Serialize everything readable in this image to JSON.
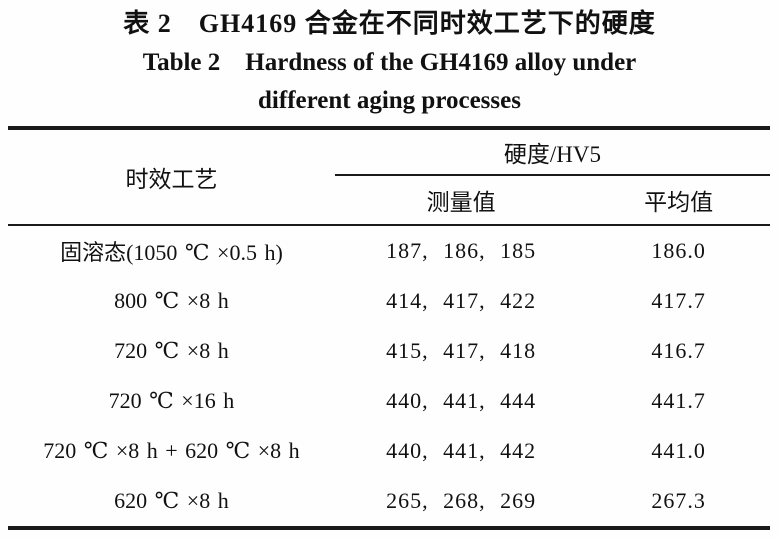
{
  "title": {
    "line1_zh": "表 2　GH4169 合金在不同时效工艺下的硬度",
    "line2_en": "Table 2 Hardness of the GH4169 alloy under",
    "line3_en": "different aging processes"
  },
  "table": {
    "col1_header": "时效工艺",
    "group_header": "硬度/HV5",
    "sub_headers": [
      "测量值",
      "平均值"
    ],
    "rows": [
      {
        "process": "固溶态(1050 ℃ ×0.5 h)",
        "measured": "187, 186, 185",
        "average": "186.0"
      },
      {
        "process": "800 ℃ ×8 h",
        "measured": "414, 417, 422",
        "average": "417.7"
      },
      {
        "process": "720 ℃ ×8 h",
        "measured": "415, 417, 418",
        "average": "416.7"
      },
      {
        "process": "720 ℃ ×16 h",
        "measured": "440, 441, 444",
        "average": "441.7"
      },
      {
        "process": "720 ℃ ×8 h + 620 ℃ ×8 h",
        "measured": "440, 441, 442",
        "average": "441.0"
      },
      {
        "process": "620 ℃ ×8 h",
        "measured": "265, 268, 269",
        "average": "267.3"
      }
    ]
  }
}
